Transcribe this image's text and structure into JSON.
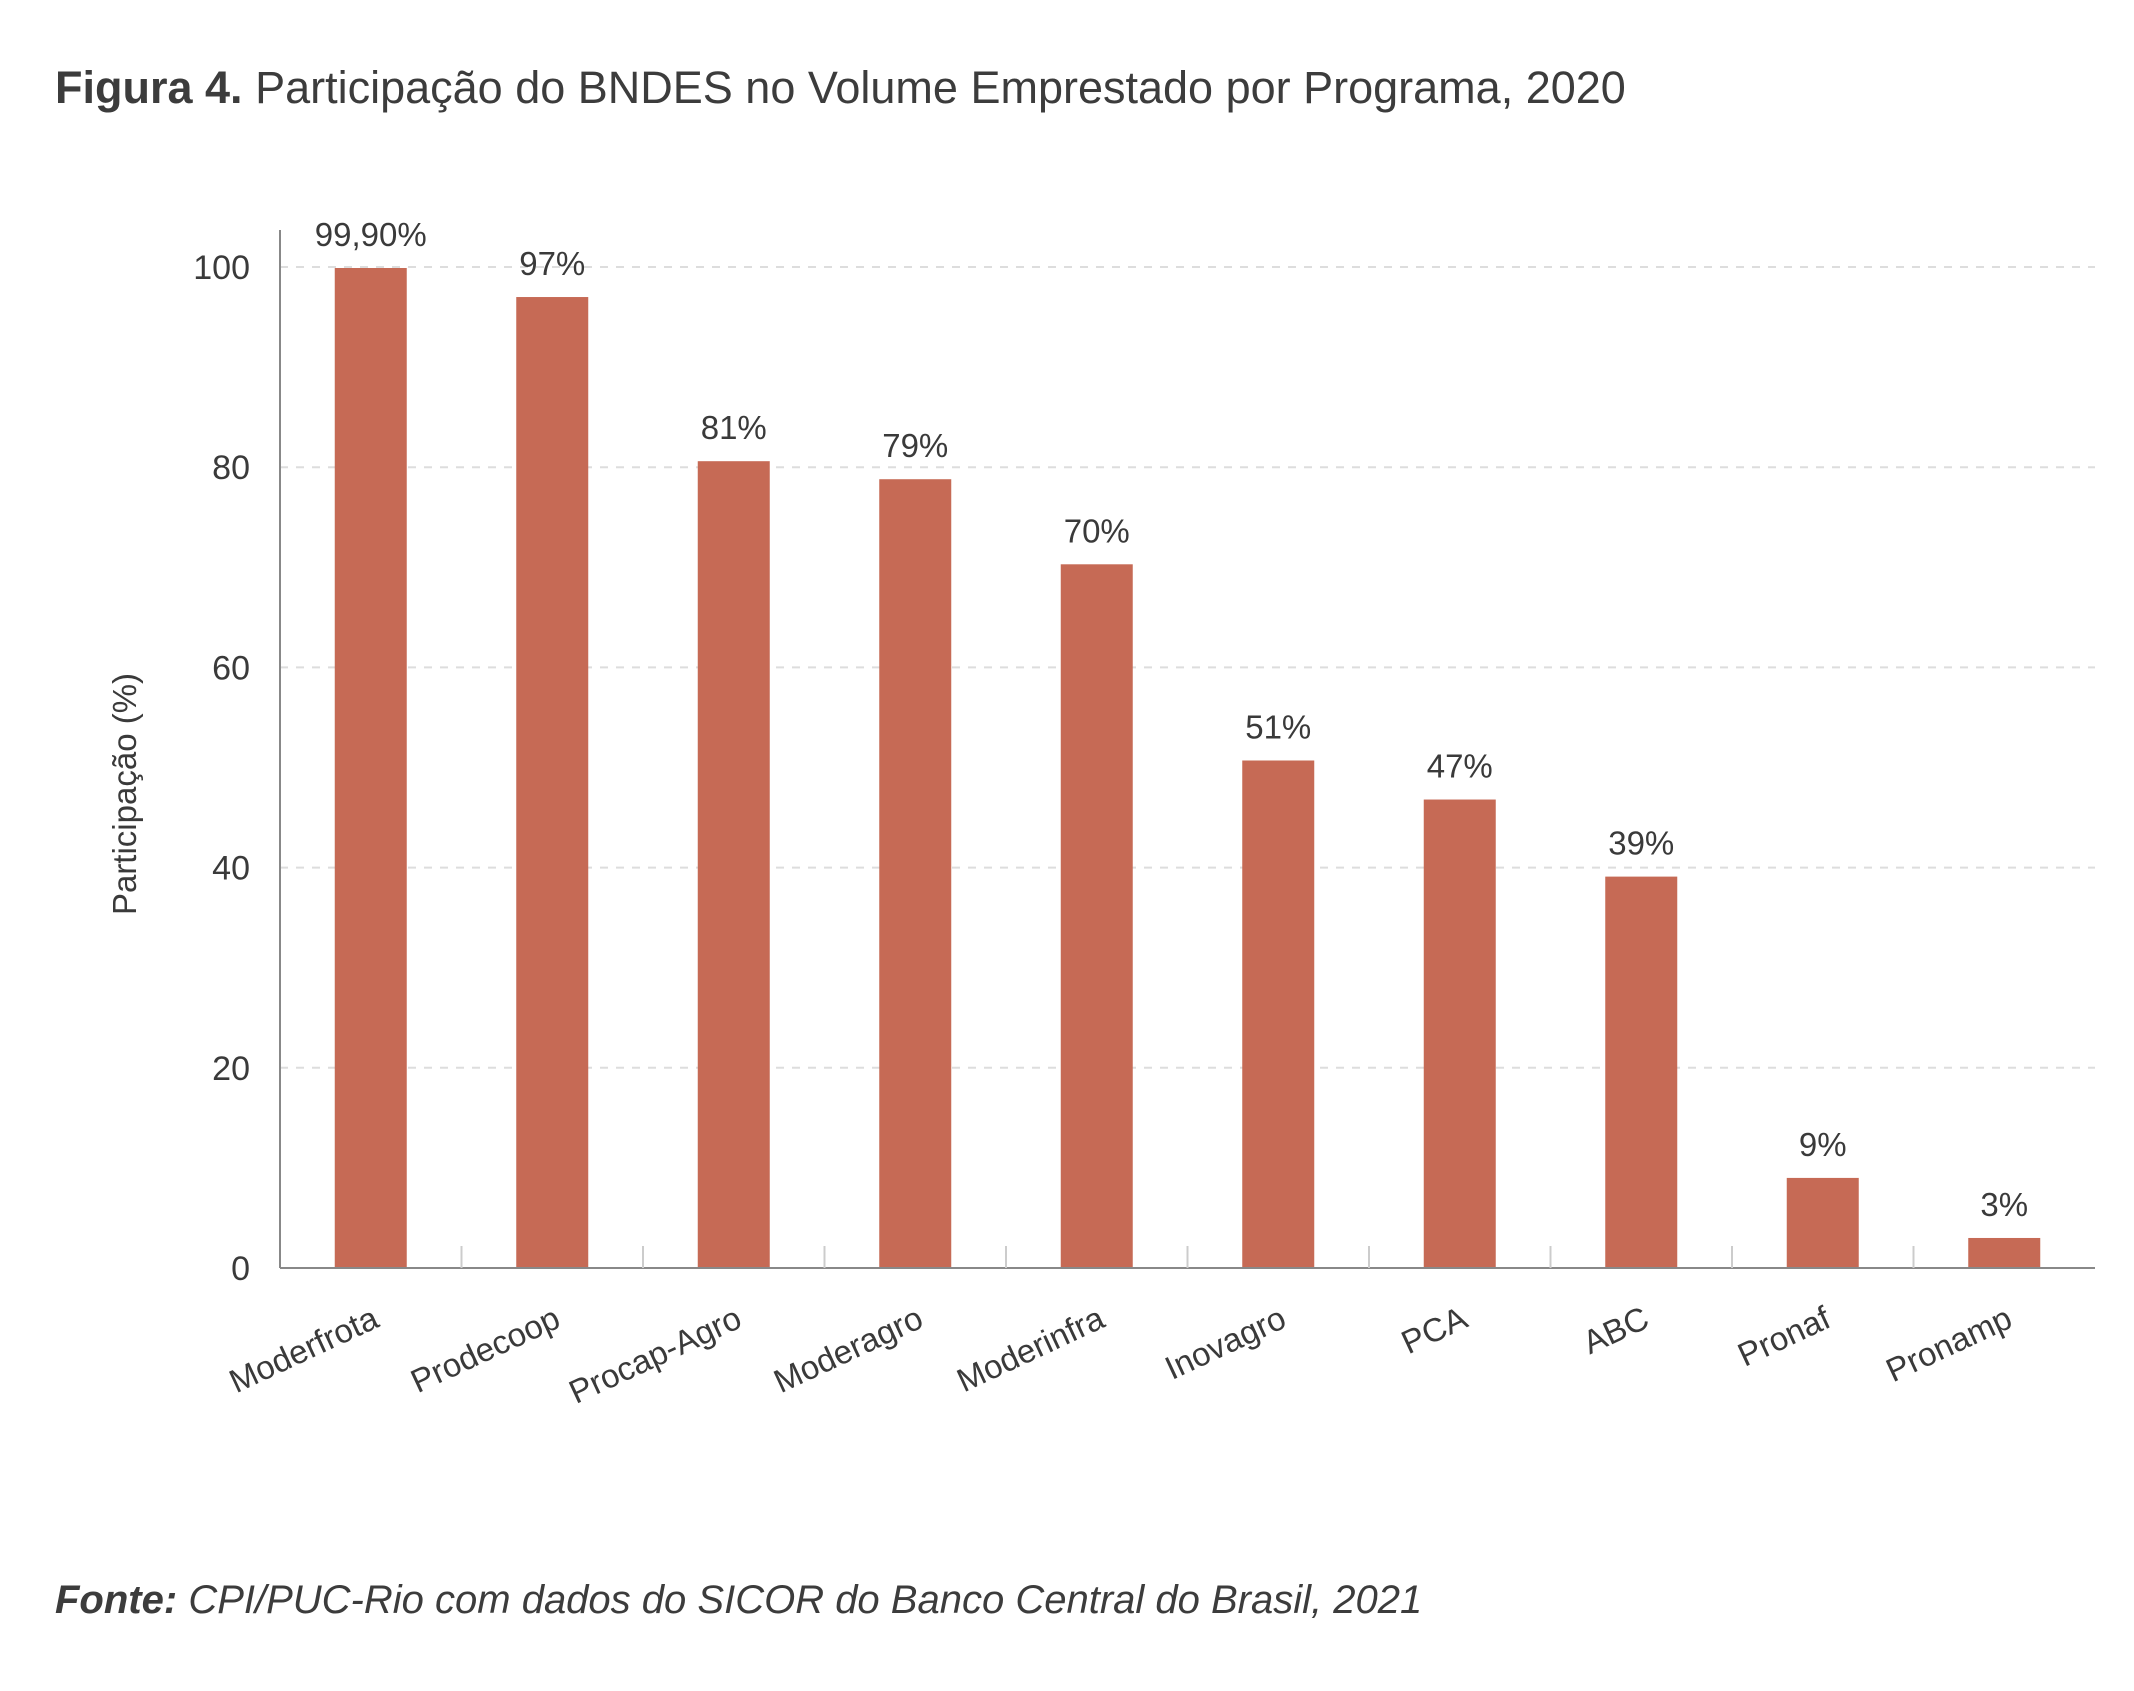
{
  "header": {
    "figure_label": "Figura 4.",
    "figure_title": "Participação do BNDES no Volume Emprestado por Programa, 2020"
  },
  "footer": {
    "source_label": "Fonte:",
    "source_text": "CPI/PUC-Rio com dados do SICOR do Banco Central do Brasil, 2021"
  },
  "colors": {
    "bar": "#c66a55",
    "axis": "#888888",
    "grid": "#dddddd"
  },
  "chart_data": {
    "type": "bar",
    "ylabel": "Participação (%)",
    "xlabel": "",
    "ylim": [
      0,
      100
    ],
    "yticks": [
      0,
      20,
      40,
      60,
      80,
      100
    ],
    "grid": true,
    "categories": [
      "Moderfrota",
      "Prodecoop",
      "Procap-Agro",
      "Moderagro",
      "Moderinfra",
      "Inovagro",
      "PCA",
      "ABC",
      "Pronaf",
      "Pronamp"
    ],
    "values": [
      99.9,
      97,
      80.6,
      78.8,
      70.3,
      50.7,
      46.8,
      39.1,
      9,
      3
    ],
    "data_labels": [
      "99,90%",
      "97%",
      "81%",
      "79%",
      "70%",
      "51%",
      "47%",
      "39%",
      "9%",
      "3%"
    ]
  }
}
